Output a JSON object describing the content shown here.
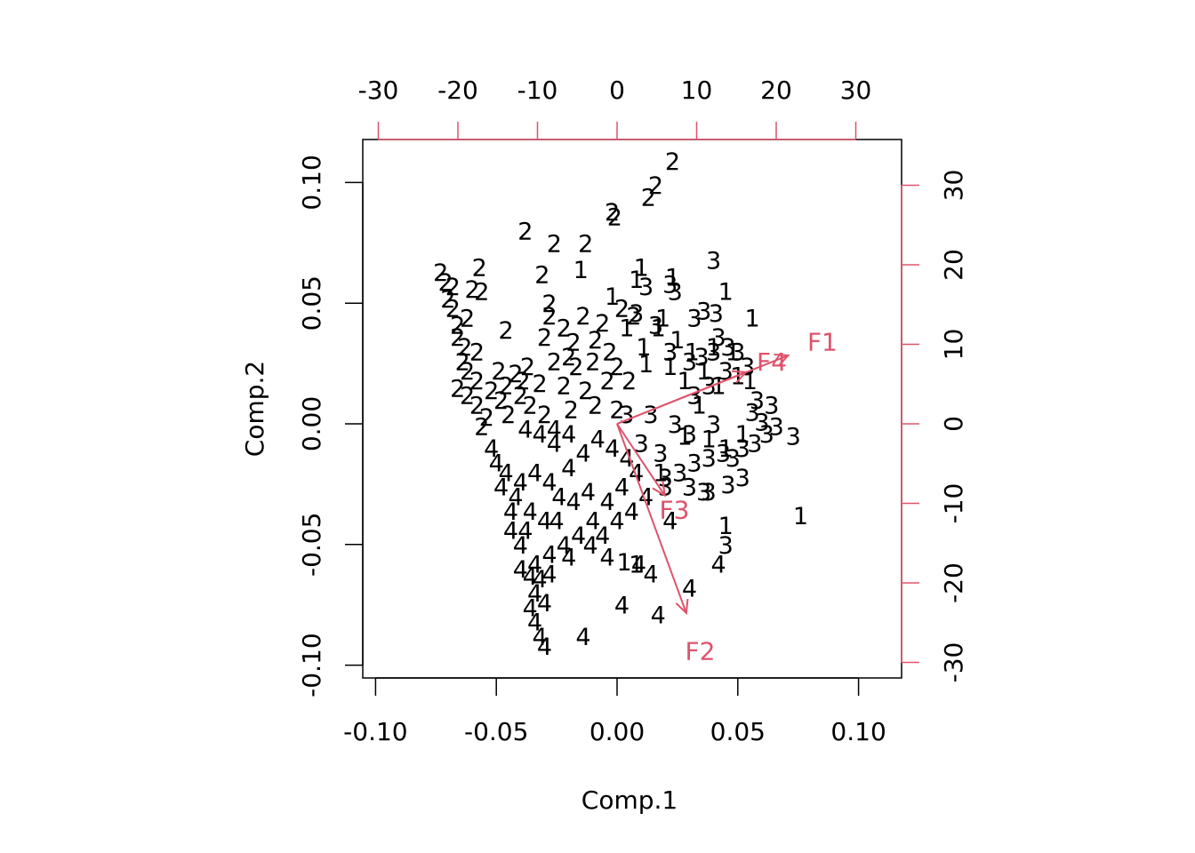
{
  "chart_data": {
    "type": "scatter",
    "subtype": "biplot",
    "xlabel": "Comp.1",
    "ylabel": "Comp.2",
    "xlim": [
      -0.1,
      0.1
    ],
    "ylim": [
      -0.1,
      0.1
    ],
    "x_ticks": [
      "-0.10",
      "-0.05",
      "0.00",
      "0.05",
      "0.10"
    ],
    "y_ticks": [
      "-0.10",
      "-0.05",
      "0.00",
      "0.05",
      "0.10"
    ],
    "top_ticks": [
      "-30",
      "-20",
      "-10",
      "0",
      "10",
      "20",
      "30"
    ],
    "right_ticks": [
      "-30",
      "-20",
      "-10",
      "0",
      "10",
      "20",
      "30"
    ],
    "loading_color": "#DF536B",
    "point_color": "#000000",
    "grid": false,
    "loadings": [
      {
        "name": "F1",
        "x": 21.5,
        "y": 8.6
      },
      {
        "name": "F2",
        "x": 8.7,
        "y": -23.8
      },
      {
        "name": "F3",
        "x": 6.0,
        "y": -9.0
      },
      {
        "name": "F4",
        "x": 16.2,
        "y": 6.5
      }
    ],
    "series": [
      {
        "name": "1",
        "points": [
          [
            -0.015,
            0.064
          ],
          [
            0.01,
            0.065
          ],
          [
            0.023,
            0.061
          ],
          [
            0.045,
            0.055
          ],
          [
            0.056,
            0.044
          ],
          [
            -0.002,
            0.053
          ],
          [
            0.008,
            0.06
          ],
          [
            0.017,
            0.04
          ],
          [
            0.025,
            0.035
          ],
          [
            0.031,
            0.03
          ],
          [
            0.04,
            0.032
          ],
          [
            0.048,
            0.03
          ],
          [
            0.012,
            0.025
          ],
          [
            0.022,
            0.024
          ],
          [
            0.028,
            0.018
          ],
          [
            0.036,
            0.022
          ],
          [
            0.042,
            0.016
          ],
          [
            0.05,
            0.02
          ],
          [
            0.055,
            0.018
          ],
          [
            0.034,
            0.008
          ],
          [
            0.028,
            -0.005
          ],
          [
            0.038,
            -0.006
          ],
          [
            0.045,
            -0.01
          ],
          [
            0.052,
            -0.004
          ],
          [
            0.018,
            -0.02
          ],
          [
            0.076,
            -0.038
          ],
          [
            0.045,
            -0.042
          ],
          [
            0.003,
            -0.057
          ],
          [
            0.008,
            -0.058
          ],
          [
            0.019,
            0.044
          ],
          [
            0.004,
            0.04
          ],
          [
            0.011,
            0.032
          ]
        ]
      },
      {
        "name": "2",
        "points": [
          [
            0.023,
            0.109
          ],
          [
            0.016,
            0.099
          ],
          [
            0.013,
            0.094
          ],
          [
            -0.002,
            0.088
          ],
          [
            -0.001,
            0.086
          ],
          [
            -0.038,
            0.08
          ],
          [
            -0.026,
            0.075
          ],
          [
            -0.013,
            0.075
          ],
          [
            -0.057,
            0.065
          ],
          [
            -0.031,
            0.062
          ],
          [
            -0.073,
            0.063
          ],
          [
            -0.071,
            0.059
          ],
          [
            -0.068,
            0.057
          ],
          [
            -0.06,
            0.056
          ],
          [
            -0.056,
            0.055
          ],
          [
            -0.07,
            0.052
          ],
          [
            -0.068,
            0.048
          ],
          [
            -0.062,
            0.044
          ],
          [
            -0.066,
            0.041
          ],
          [
            -0.046,
            0.039
          ],
          [
            -0.066,
            0.036
          ],
          [
            -0.063,
            0.032
          ],
          [
            -0.058,
            0.03
          ],
          [
            -0.064,
            0.026
          ],
          [
            -0.062,
            0.022
          ],
          [
            -0.058,
            0.018
          ],
          [
            -0.049,
            0.022
          ],
          [
            -0.042,
            0.021
          ],
          [
            -0.037,
            0.024
          ],
          [
            -0.066,
            0.015
          ],
          [
            -0.062,
            0.012
          ],
          [
            -0.052,
            0.014
          ],
          [
            -0.046,
            0.016
          ],
          [
            -0.039,
            0.018
          ],
          [
            -0.032,
            0.017
          ],
          [
            -0.058,
            0.008
          ],
          [
            -0.048,
            0.01
          ],
          [
            -0.04,
            0.012
          ],
          [
            -0.054,
            0.003
          ],
          [
            -0.056,
            -0.001
          ],
          [
            -0.028,
            0.045
          ],
          [
            -0.022,
            0.04
          ],
          [
            -0.014,
            0.045
          ],
          [
            -0.006,
            0.042
          ],
          [
            0.002,
            0.048
          ],
          [
            0.007,
            0.045
          ],
          [
            -0.03,
            0.036
          ],
          [
            -0.018,
            0.034
          ],
          [
            -0.009,
            0.035
          ],
          [
            -0.003,
            0.03
          ],
          [
            -0.026,
            0.026
          ],
          [
            -0.017,
            0.024
          ],
          [
            -0.01,
            0.026
          ],
          [
            0.0,
            0.024
          ],
          [
            -0.022,
            0.016
          ],
          [
            -0.013,
            0.014
          ],
          [
            -0.004,
            0.018
          ],
          [
            0.005,
            0.018
          ],
          [
            -0.019,
            0.006
          ],
          [
            -0.009,
            0.008
          ],
          [
            0.0,
            0.006
          ],
          [
            -0.045,
            0.004
          ],
          [
            -0.036,
            0.008
          ],
          [
            -0.03,
            0.004
          ],
          [
            -0.028,
            0.05
          ],
          [
            -0.02,
            0.028
          ]
        ]
      },
      {
        "name": "3",
        "points": [
          [
            0.04,
            0.068
          ],
          [
            0.012,
            0.057
          ],
          [
            0.022,
            0.058
          ],
          [
            0.024,
            0.055
          ],
          [
            0.036,
            0.047
          ],
          [
            0.041,
            0.046
          ],
          [
            0.032,
            0.044
          ],
          [
            0.016,
            0.041
          ],
          [
            0.008,
            0.046
          ],
          [
            0.046,
            0.032
          ],
          [
            0.05,
            0.03
          ],
          [
            0.04,
            0.03
          ],
          [
            0.035,
            0.028
          ],
          [
            0.054,
            0.024
          ],
          [
            0.045,
            0.022
          ],
          [
            0.03,
            0.026
          ],
          [
            0.022,
            0.03
          ],
          [
            0.038,
            0.016
          ],
          [
            0.032,
            0.012
          ],
          [
            0.058,
            0.01
          ],
          [
            0.064,
            0.008
          ],
          [
            0.056,
            0.005
          ],
          [
            0.06,
            0.001
          ],
          [
            0.066,
            -0.001
          ],
          [
            0.062,
            -0.004
          ],
          [
            0.073,
            -0.005
          ],
          [
            0.057,
            -0.008
          ],
          [
            0.052,
            -0.01
          ],
          [
            0.044,
            -0.012
          ],
          [
            0.038,
            -0.014
          ],
          [
            0.032,
            -0.016
          ],
          [
            0.026,
            -0.02
          ],
          [
            0.02,
            -0.022
          ],
          [
            0.03,
            -0.026
          ],
          [
            0.038,
            -0.028
          ],
          [
            0.046,
            -0.025
          ],
          [
            0.052,
            -0.022
          ],
          [
            0.045,
            -0.05
          ],
          [
            0.036,
            -0.028
          ],
          [
            0.018,
            -0.012
          ],
          [
            0.01,
            -0.008
          ],
          [
            0.004,
            0.004
          ],
          [
            0.014,
            0.004
          ],
          [
            0.024,
            0.0
          ],
          [
            0.03,
            -0.004
          ],
          [
            0.04,
            0.0
          ],
          [
            0.02,
            -0.026
          ],
          [
            0.048,
            -0.014
          ],
          [
            0.042,
            0.036
          ]
        ]
      },
      {
        "name": "4",
        "points": [
          [
            -0.038,
            -0.002
          ],
          [
            -0.032,
            -0.004
          ],
          [
            -0.026,
            -0.002
          ],
          [
            -0.052,
            -0.01
          ],
          [
            -0.05,
            -0.016
          ],
          [
            -0.046,
            -0.02
          ],
          [
            -0.04,
            -0.024
          ],
          [
            -0.042,
            -0.03
          ],
          [
            -0.048,
            -0.026
          ],
          [
            -0.036,
            -0.036
          ],
          [
            -0.044,
            -0.036
          ],
          [
            -0.038,
            -0.044
          ],
          [
            -0.03,
            -0.04
          ],
          [
            -0.024,
            -0.03
          ],
          [
            -0.018,
            -0.032
          ],
          [
            -0.012,
            -0.028
          ],
          [
            -0.028,
            -0.024
          ],
          [
            -0.034,
            -0.02
          ],
          [
            -0.02,
            -0.018
          ],
          [
            -0.014,
            -0.012
          ],
          [
            -0.008,
            -0.006
          ],
          [
            -0.002,
            -0.01
          ],
          [
            0.004,
            -0.014
          ],
          [
            0.008,
            -0.02
          ],
          [
            0.002,
            -0.026
          ],
          [
            -0.004,
            -0.032
          ],
          [
            -0.01,
            -0.04
          ],
          [
            -0.016,
            -0.046
          ],
          [
            -0.022,
            -0.05
          ],
          [
            -0.028,
            -0.054
          ],
          [
            -0.034,
            -0.058
          ],
          [
            -0.04,
            -0.06
          ],
          [
            -0.036,
            -0.063
          ],
          [
            -0.032,
            -0.064
          ],
          [
            -0.028,
            -0.062
          ],
          [
            -0.034,
            -0.07
          ],
          [
            -0.03,
            -0.074
          ],
          [
            -0.036,
            -0.076
          ],
          [
            -0.034,
            -0.082
          ],
          [
            -0.032,
            -0.088
          ],
          [
            -0.03,
            -0.092
          ],
          [
            -0.014,
            -0.088
          ],
          [
            0.002,
            -0.075
          ],
          [
            0.017,
            -0.079
          ],
          [
            0.03,
            -0.068
          ],
          [
            0.042,
            -0.058
          ],
          [
            0.014,
            -0.062
          ],
          [
            0.009,
            -0.058
          ],
          [
            -0.004,
            -0.055
          ],
          [
            0.022,
            -0.04
          ],
          [
            -0.025,
            -0.04
          ],
          [
            -0.02,
            -0.055
          ],
          [
            -0.011,
            -0.05
          ],
          [
            -0.006,
            -0.046
          ],
          [
            0.0,
            -0.04
          ],
          [
            0.006,
            -0.036
          ],
          [
            0.012,
            -0.03
          ],
          [
            -0.044,
            -0.044
          ],
          [
            -0.04,
            -0.05
          ],
          [
            -0.026,
            -0.008
          ],
          [
            -0.02,
            -0.004
          ]
        ]
      }
    ]
  }
}
